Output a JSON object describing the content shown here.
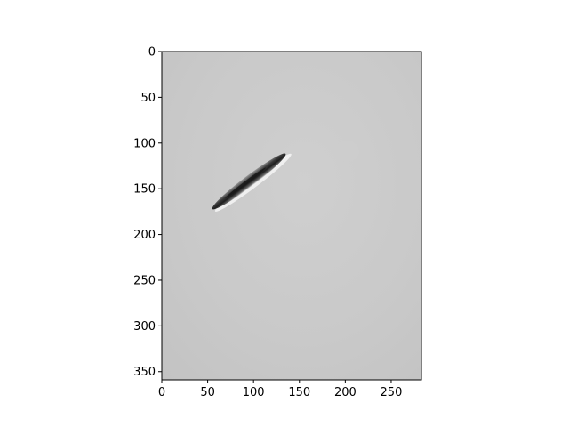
{
  "figure": {
    "x_axis": {
      "range": [
        0,
        283
      ],
      "ticks": [
        0,
        50,
        100,
        150,
        200,
        250
      ],
      "tick_labels": [
        "0",
        "50",
        "100",
        "150",
        "200",
        "250"
      ]
    },
    "y_axis": {
      "range": [
        0,
        359
      ],
      "inverted": true,
      "ticks": [
        0,
        50,
        100,
        150,
        200,
        250,
        300,
        350
      ],
      "tick_labels": [
        "0",
        "50",
        "100",
        "150",
        "200",
        "250",
        "300",
        "350"
      ]
    },
    "image": {
      "description_icon": "grayscale-microscopy-image",
      "background_color": "#c9c9c9",
      "object": {
        "kind": "elongated-rod",
        "center": [
          95,
          142
        ],
        "length": 100,
        "width": 12,
        "angle_deg": -37
      }
    }
  }
}
